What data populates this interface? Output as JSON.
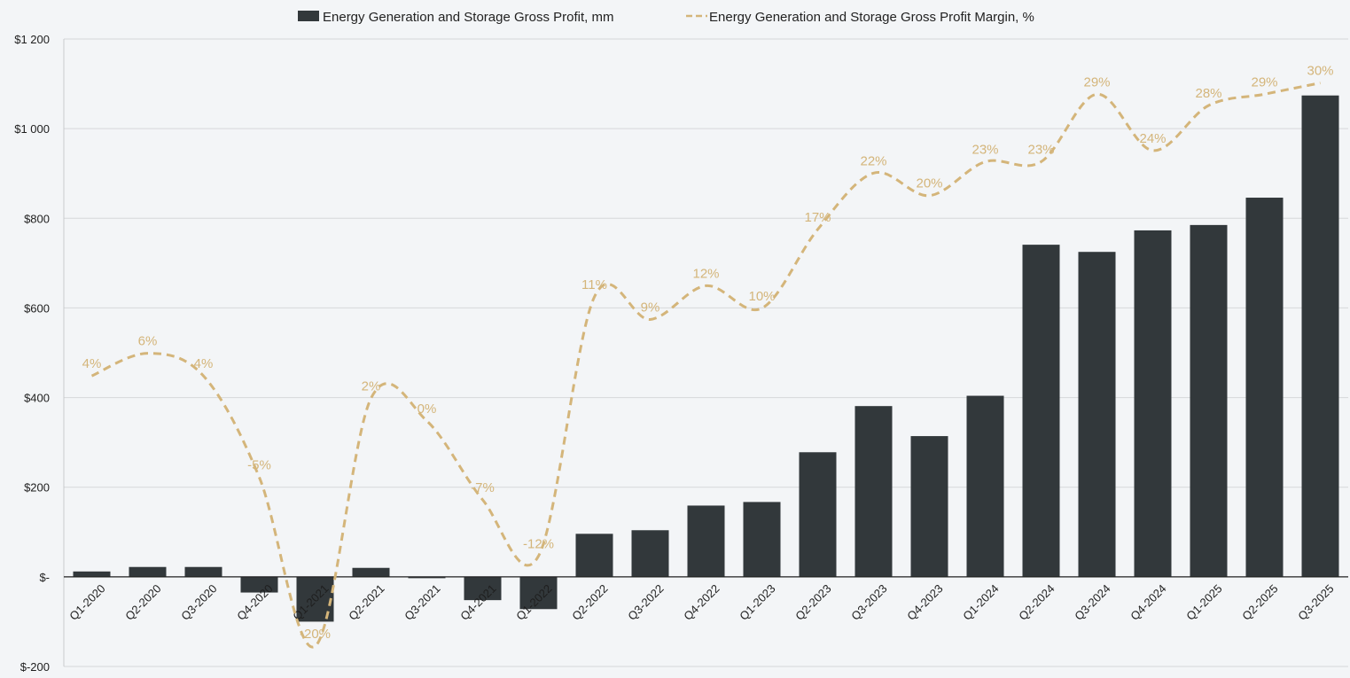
{
  "chart_data": {
    "type": "bar",
    "title": "",
    "xlabel": "",
    "ylabel": "",
    "ylim": [
      -200,
      1200
    ],
    "y2lim": [
      -21.8,
      33.9
    ],
    "yticks": [
      -200,
      0,
      200,
      400,
      600,
      800,
      1000,
      1200
    ],
    "ytick_labels": [
      "$-200",
      "$-",
      "$200",
      "$400",
      "$600",
      "$800",
      "$1 000",
      "$1 200"
    ],
    "categories": [
      "Q1-2020",
      "Q2-2020",
      "Q3-2020",
      "Q4-2020",
      "Q1-2021",
      "Q2-2021",
      "Q3-2021",
      "Q4-2021",
      "Q1-2022",
      "Q2-2022",
      "Q3-2022",
      "Q4-2022",
      "Q1-2023",
      "Q2-2023",
      "Q3-2023",
      "Q4-2023",
      "Q1-2024",
      "Q2-2024",
      "Q3-2024",
      "Q4-2024",
      "Q1-2025",
      "Q2-2025",
      "Q3-2025"
    ],
    "series": [
      {
        "name": "Energy Generation and Storage Gross Profit, mm",
        "type": "bar",
        "color": "#32383b",
        "values": [
          12,
          22,
          22,
          -35,
          -100,
          20,
          -3,
          -52,
          -72,
          96,
          104,
          159,
          167,
          278,
          381,
          314,
          404,
          741,
          725,
          773,
          785,
          846,
          1074
        ]
      },
      {
        "name": "Energy Generation and Storage Gross Profit Margin, %",
        "type": "line",
        "axis": "secondary",
        "color": "#d4b57a",
        "values": [
          4,
          6,
          4,
          -5,
          -20,
          2,
          0,
          -7,
          -12,
          11,
          9,
          12,
          10,
          17,
          22,
          20,
          23,
          23,
          29,
          24,
          28,
          29,
          30
        ],
        "labels": [
          "4%",
          "6%",
          "4%",
          "-5%",
          "-20%",
          "2%",
          "0%",
          "-7%",
          "-12%",
          "11%",
          "9%",
          "12%",
          "10%",
          "17%",
          "22%",
          "20%",
          "23%",
          "23%",
          "29%",
          "24%",
          "28%",
          "29%",
          "30%"
        ]
      }
    ],
    "legend": "top-center",
    "grid": true
  }
}
